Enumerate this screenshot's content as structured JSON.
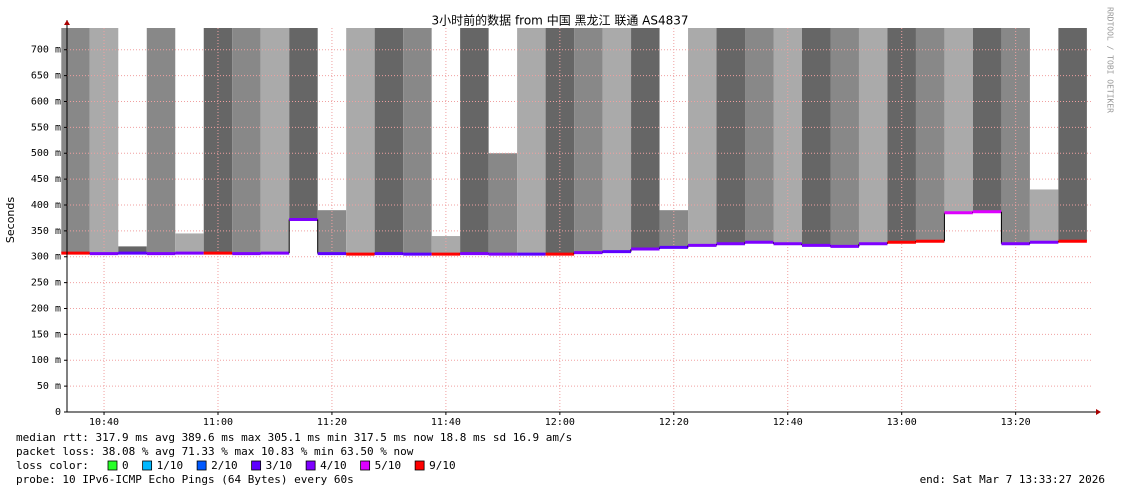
{
  "chart_data": {
    "type": "smokeping",
    "title": "3小时前的数据 from 中国 黑龙江 联通 AS4837",
    "side_label": "RRDTOOL / TOBI OETIKER",
    "y_label": "Seconds",
    "xlim": [
      633.5,
      813.4
    ],
    "xticks": [
      {
        "value": 640,
        "label": "10:40"
      },
      {
        "value": 660,
        "label": "11:00"
      },
      {
        "value": 680,
        "label": "11:20"
      },
      {
        "value": 700,
        "label": "11:40"
      },
      {
        "value": 720,
        "label": "12:00"
      },
      {
        "value": 740,
        "label": "12:20"
      },
      {
        "value": 760,
        "label": "12:40"
      },
      {
        "value": 780,
        "label": "13:00"
      },
      {
        "value": 800,
        "label": "13:20"
      }
    ],
    "ylim": [
      0,
      742
    ],
    "yticks": [
      {
        "value": 0,
        "label": "0"
      },
      {
        "value": 50,
        "label": "50 m"
      },
      {
        "value": 100,
        "label": "100 m"
      },
      {
        "value": 150,
        "label": "150 m"
      },
      {
        "value": 200,
        "label": "200 m"
      },
      {
        "value": 250,
        "label": "250 m"
      },
      {
        "value": 300,
        "label": "300 m"
      },
      {
        "value": 350,
        "label": "350 m"
      },
      {
        "value": 400,
        "label": "400 m"
      },
      {
        "value": 450,
        "label": "450 m"
      },
      {
        "value": 500,
        "label": "500 m"
      },
      {
        "value": 550,
        "label": "550 m"
      },
      {
        "value": 600,
        "label": "600 m"
      },
      {
        "value": 650,
        "label": "650 m"
      },
      {
        "value": 700,
        "label": "700 m"
      }
    ],
    "grid": true,
    "x": [
      635,
      640,
      645,
      650,
      655,
      660,
      665,
      670,
      675,
      680,
      685,
      690,
      695,
      700,
      705,
      710,
      715,
      720,
      725,
      730,
      735,
      740,
      745,
      750,
      755,
      760,
      765,
      770,
      775,
      780,
      785,
      790,
      795,
      800,
      805,
      810
    ],
    "median": [
      307,
      306,
      307,
      306,
      307,
      307,
      306,
      307,
      372,
      306,
      305,
      306,
      305,
      305,
      306,
      305,
      305,
      305,
      308,
      310,
      315,
      318,
      322,
      325,
      328,
      325,
      322,
      320,
      325,
      328,
      330,
      385,
      387,
      325,
      328,
      330
    ],
    "loss_index": [
      6,
      4,
      3,
      4,
      4,
      6,
      4,
      4,
      4,
      3,
      6,
      3,
      3,
      6,
      4,
      4,
      3,
      6,
      4,
      3,
      4,
      3,
      4,
      4,
      4,
      4,
      4,
      4,
      4,
      6,
      6,
      5,
      5,
      4,
      4,
      6
    ],
    "smoke_top": [
      742,
      742,
      320,
      742,
      345,
      742,
      742,
      742,
      742,
      390,
      742,
      742,
      742,
      340,
      742,
      500,
      742,
      742,
      742,
      742,
      742,
      390,
      742,
      742,
      742,
      742,
      742,
      742,
      742,
      742,
      742,
      742,
      742,
      742,
      430,
      742
    ],
    "smoke_colors": [
      "#888888",
      "#aaaaaa",
      "#666666"
    ],
    "loss_legend": [
      {
        "label": "0",
        "color": "#26ff26"
      },
      {
        "label": "1/10",
        "color": "#00b8ff"
      },
      {
        "label": "2/10",
        "color": "#0059ff"
      },
      {
        "label": "3/10",
        "color": "#5e00ff"
      },
      {
        "label": "4/10",
        "color": "#7e00ff"
      },
      {
        "label": "5/10",
        "color": "#dd00ff"
      },
      {
        "label": "9/10",
        "color": "#ff0000"
      }
    ],
    "loss_color_label": "loss color:",
    "info_lines": [
      "median rtt:  317.9 ms avg  389.6 ms max  305.1 ms min  317.5 ms now  18.8 ms sd  16.9   am/s",
      "packet loss: 38.08 % avg  71.33 % max  10.83 % min  63.50 % now"
    ],
    "probe": "probe:       10 IPv6-ICMP Echo Pings (64 Bytes) every 60s",
    "end": "end: Sat Mar  7 13:33:27 2026"
  }
}
